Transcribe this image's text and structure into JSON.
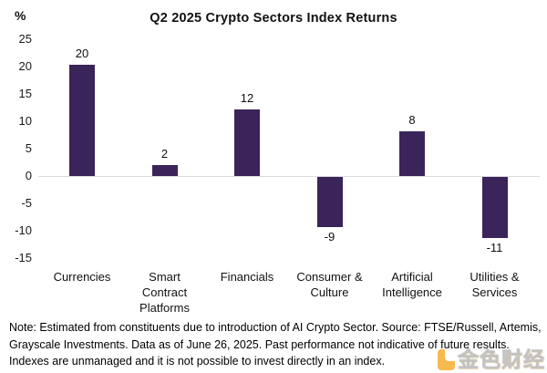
{
  "chart_data": {
    "type": "bar",
    "title": "Q2 2025 Crypto Sectors Index Returns",
    "unit_label": "%",
    "categories": [
      "Currencies",
      "Smart\nContract\nPlatforms",
      "Financials",
      "Consumer &\nCulture",
      "Artificial\nIntelligence",
      "Utilities &\nServices"
    ],
    "values": [
      20,
      2,
      12,
      -9,
      8,
      -11
    ],
    "value_labels": [
      "20",
      "2",
      "12",
      "-9",
      "8",
      "-11"
    ],
    "xlabel": "",
    "ylabel": "%",
    "yticks": [
      25,
      20,
      15,
      10,
      5,
      0,
      -5,
      -10,
      -15
    ],
    "ylim": [
      -15,
      25
    ],
    "grid": false,
    "legend": "none",
    "bar_color": "#3A2459",
    "zero_line_color": "#DCDCDC"
  },
  "notes": {
    "lines": [
      "Note: Estimated from constituents due to introduction of AI Crypto Sector. Source: FTSE/Russell, Artemis,",
      "Grayscale Investments. Data as of June 26, 2025. Past performance not indicative of future results.",
      "Indexes are unmanaged and it is not possible to invest directly in an index."
    ]
  },
  "watermark": {
    "icon": "jinse-finance-logo",
    "text": "金色财经",
    "accent_color": "#F7A823"
  }
}
